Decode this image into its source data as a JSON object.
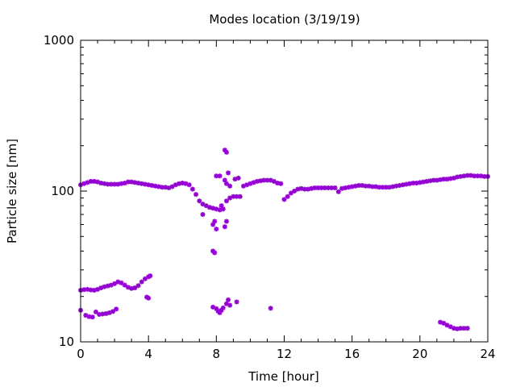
{
  "chart_data": {
    "type": "scatter",
    "title": "Modes location (3/19/19)",
    "xlabel": "Time [hour]",
    "ylabel": "Particle size [nm]",
    "xlim": [
      0,
      24
    ],
    "ylim": [
      10,
      1000
    ],
    "yscale": "log",
    "grid": false,
    "legend": "none",
    "x_ticks": [
      0,
      4,
      8,
      12,
      16,
      20,
      24
    ],
    "x_tick_labels": [
      "0",
      "4",
      "8",
      "12",
      "16",
      "20",
      "24"
    ],
    "y_ticks": [
      10,
      100,
      1000
    ],
    "y_tick_labels": [
      "10",
      "100",
      "1000"
    ],
    "marker_color": "#9400d3",
    "series": [
      {
        "points": [
          [
            0.0,
            110
          ],
          [
            0.2,
            112
          ],
          [
            0.4,
            114
          ],
          [
            0.6,
            116
          ],
          [
            0.8,
            116
          ],
          [
            1.0,
            115
          ],
          [
            1.2,
            113
          ],
          [
            1.4,
            112
          ],
          [
            1.6,
            111
          ],
          [
            1.8,
            111
          ],
          [
            2.0,
            111
          ],
          [
            2.2,
            111
          ],
          [
            2.4,
            112
          ],
          [
            2.6,
            113
          ],
          [
            2.8,
            115
          ],
          [
            3.0,
            115
          ],
          [
            3.2,
            114
          ],
          [
            3.4,
            113
          ],
          [
            3.6,
            112
          ],
          [
            3.8,
            111
          ],
          [
            4.0,
            110
          ],
          [
            4.2,
            109
          ],
          [
            4.4,
            108
          ],
          [
            4.6,
            107
          ],
          [
            4.8,
            106
          ],
          [
            5.0,
            106
          ],
          [
            5.2,
            105
          ],
          [
            5.4,
            107
          ],
          [
            5.6,
            110
          ],
          [
            5.8,
            112
          ],
          [
            6.0,
            113
          ],
          [
            6.2,
            112
          ],
          [
            6.4,
            110
          ],
          [
            6.6,
            103
          ],
          [
            6.8,
            95
          ],
          [
            7.0,
            86
          ],
          [
            7.2,
            82
          ],
          [
            7.4,
            80
          ],
          [
            7.6,
            78
          ],
          [
            7.8,
            77
          ],
          [
            8.0,
            76
          ],
          [
            8.2,
            75
          ],
          [
            8.4,
            76
          ],
          [
            8.6,
            86
          ],
          [
            8.8,
            90
          ],
          [
            9.0,
            92
          ],
          [
            9.2,
            92
          ],
          [
            9.4,
            92
          ],
          [
            9.6,
            108
          ],
          [
            9.8,
            110
          ],
          [
            10.0,
            112
          ],
          [
            10.2,
            114
          ],
          [
            10.4,
            116
          ],
          [
            10.6,
            117
          ],
          [
            10.8,
            118
          ],
          [
            11.0,
            118
          ],
          [
            11.2,
            118
          ],
          [
            11.4,
            116
          ],
          [
            11.6,
            113
          ],
          [
            11.8,
            112
          ],
          [
            12.0,
            88
          ],
          [
            12.2,
            92
          ],
          [
            12.4,
            97
          ],
          [
            12.6,
            100
          ],
          [
            12.8,
            103
          ],
          [
            13.0,
            104
          ],
          [
            13.2,
            103
          ],
          [
            13.4,
            103
          ],
          [
            13.6,
            104
          ],
          [
            13.8,
            105
          ],
          [
            14.0,
            105
          ],
          [
            14.2,
            105
          ],
          [
            14.4,
            105
          ],
          [
            14.6,
            105
          ],
          [
            14.8,
            105
          ],
          [
            15.0,
            105
          ],
          [
            15.2,
            99
          ],
          [
            15.4,
            104
          ],
          [
            15.6,
            105
          ],
          [
            15.8,
            106
          ],
          [
            16.0,
            107
          ],
          [
            16.2,
            108
          ],
          [
            16.4,
            109
          ],
          [
            16.6,
            109
          ],
          [
            16.8,
            108
          ],
          [
            17.0,
            108
          ],
          [
            17.2,
            107
          ],
          [
            17.4,
            107
          ],
          [
            17.6,
            106
          ],
          [
            17.8,
            106
          ],
          [
            18.0,
            106
          ],
          [
            18.2,
            106
          ],
          [
            18.4,
            107
          ],
          [
            18.6,
            108
          ],
          [
            18.8,
            109
          ],
          [
            19.0,
            110
          ],
          [
            19.2,
            111
          ],
          [
            19.4,
            112
          ],
          [
            19.6,
            113
          ],
          [
            19.8,
            113
          ],
          [
            20.0,
            114
          ],
          [
            20.2,
            115
          ],
          [
            20.4,
            116
          ],
          [
            20.6,
            117
          ],
          [
            20.8,
            118
          ],
          [
            21.0,
            118
          ],
          [
            21.2,
            119
          ],
          [
            21.4,
            120
          ],
          [
            21.6,
            120
          ],
          [
            21.8,
            121
          ],
          [
            22.0,
            122
          ],
          [
            22.2,
            124
          ],
          [
            22.4,
            125
          ],
          [
            22.6,
            126
          ],
          [
            22.8,
            127
          ],
          [
            23.0,
            127
          ],
          [
            23.2,
            126
          ],
          [
            23.4,
            126
          ],
          [
            23.6,
            126
          ],
          [
            23.8,
            125
          ],
          [
            24.0,
            125
          ],
          [
            7.2,
            70
          ],
          [
            7.8,
            60
          ],
          [
            7.9,
            63
          ],
          [
            8.0,
            56
          ],
          [
            8.3,
            80
          ],
          [
            8.0,
            126
          ],
          [
            8.2,
            126
          ],
          [
            8.5,
            187
          ],
          [
            8.6,
            181
          ],
          [
            8.7,
            132
          ],
          [
            8.5,
            118
          ],
          [
            8.6,
            112
          ],
          [
            8.8,
            108
          ],
          [
            9.1,
            120
          ],
          [
            9.3,
            122
          ],
          [
            8.5,
            58
          ],
          [
            8.6,
            63
          ],
          [
            7.8,
            40
          ],
          [
            7.9,
            39
          ]
        ]
      },
      {
        "points": [
          [
            0.0,
            22.0
          ],
          [
            0.2,
            22.2
          ],
          [
            0.4,
            22.3
          ],
          [
            0.6,
            22.1
          ],
          [
            0.8,
            22.0
          ],
          [
            1.0,
            22.3
          ],
          [
            1.2,
            22.8
          ],
          [
            1.4,
            23.2
          ],
          [
            1.6,
            23.5
          ],
          [
            1.8,
            23.8
          ],
          [
            2.0,
            24.3
          ],
          [
            2.2,
            25.0
          ],
          [
            2.4,
            24.6
          ],
          [
            2.6,
            23.8
          ],
          [
            2.8,
            23.0
          ],
          [
            3.0,
            22.6
          ],
          [
            3.2,
            22.8
          ],
          [
            3.4,
            23.6
          ],
          [
            3.6,
            25.0
          ],
          [
            3.8,
            26.2
          ],
          [
            4.0,
            27.0
          ],
          [
            4.1,
            27.4
          ],
          [
            3.9,
            19.8
          ],
          [
            4.0,
            19.5
          ]
        ]
      },
      {
        "points": [
          [
            0.0,
            16.2
          ],
          [
            0.3,
            15.0
          ],
          [
            0.5,
            14.7
          ],
          [
            0.7,
            14.6
          ],
          [
            0.9,
            15.8
          ],
          [
            1.1,
            15.2
          ],
          [
            1.3,
            15.3
          ],
          [
            1.5,
            15.4
          ],
          [
            1.7,
            15.6
          ],
          [
            1.9,
            15.9
          ],
          [
            2.1,
            16.5
          ],
          [
            7.8,
            17.0
          ],
          [
            8.0,
            16.6
          ],
          [
            8.1,
            16.0
          ],
          [
            8.2,
            15.6
          ],
          [
            8.3,
            16.2
          ],
          [
            8.4,
            16.8
          ],
          [
            8.6,
            17.9
          ],
          [
            8.7,
            19.0
          ],
          [
            8.8,
            17.5
          ],
          [
            9.2,
            18.4
          ],
          [
            11.2,
            16.7
          ],
          [
            21.2,
            13.5
          ],
          [
            21.4,
            13.3
          ],
          [
            21.6,
            12.9
          ],
          [
            21.8,
            12.6
          ],
          [
            22.0,
            12.3
          ],
          [
            22.2,
            12.2
          ],
          [
            22.4,
            12.3
          ],
          [
            22.6,
            12.3
          ],
          [
            22.8,
            12.3
          ]
        ]
      }
    ]
  }
}
